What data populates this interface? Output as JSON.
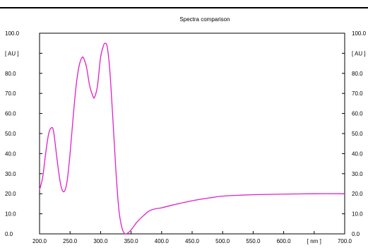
{
  "chart_data": {
    "type": "line",
    "title": "Spectra comparison",
    "xlabel": "[ nm ]",
    "ylabel_left": "[ AU ]",
    "ylabel_right": "[ AU ]",
    "xlim": [
      200,
      700
    ],
    "ylim": [
      0,
      100
    ],
    "grid": false,
    "x_ticks": [
      "200.0",
      "250.0",
      "300.0",
      "350.0",
      "400.0",
      "450.0",
      "500.0",
      "550.0",
      "600.0",
      "[ nm ]",
      "700.0"
    ],
    "y_ticks": [
      "0.0",
      "10.0",
      "20.0",
      "30.0",
      "40.0",
      "50.0",
      "60.0",
      "70.0",
      "80.0",
      "[ AU ]",
      "100.0"
    ],
    "series": [
      {
        "color": "#e020c8",
        "x": [
          200,
          205,
          210,
          215,
          220,
          223,
          226,
          230,
          235,
          240,
          245,
          250,
          255,
          260,
          265,
          270,
          273,
          277,
          282,
          287,
          290,
          295,
          300,
          305,
          308,
          311,
          315,
          320,
          325,
          330,
          335,
          340,
          345,
          350,
          355,
          360,
          370,
          380,
          390,
          400,
          420,
          450,
          480,
          500,
          530,
          560,
          600,
          650,
          700
        ],
        "y": [
          22,
          28,
          40,
          50,
          53,
          51,
          44,
          34,
          24,
          21,
          26,
          40,
          58,
          74,
          84,
          88,
          87,
          83,
          74,
          69,
          68,
          74,
          88,
          94,
          95,
          93,
          82,
          58,
          32,
          12,
          3,
          0,
          0.5,
          2,
          4,
          6,
          9,
          11.5,
          12.5,
          13,
          14.5,
          16.5,
          18,
          18.8,
          19.3,
          19.6,
          19.8,
          20,
          20
        ]
      }
    ]
  }
}
